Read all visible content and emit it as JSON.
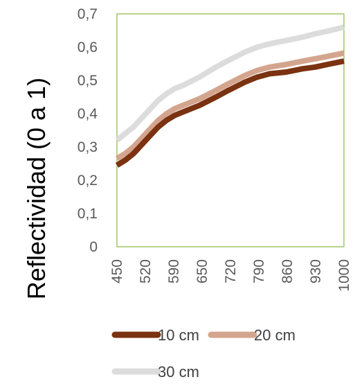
{
  "chart_data": {
    "type": "line",
    "title": "",
    "xlabel": "",
    "ylabel": "Reflectividad (0 a 1)",
    "x": [
      450,
      470,
      490,
      520,
      550,
      570,
      590,
      610,
      650,
      690,
      720,
      760,
      790,
      820,
      860,
      900,
      930,
      960,
      1000
    ],
    "x_tick_labels": [
      "450",
      "520",
      "590",
      "650",
      "720",
      "790",
      "860",
      "930",
      "1000"
    ],
    "y_ticks": [
      "0",
      "0,1",
      "0,2",
      "0,3",
      "0,4",
      "0,5",
      "0,6",
      "0,7"
    ],
    "ylim": [
      0,
      0.7
    ],
    "grid": false,
    "legend_position": "bottom",
    "series": [
      {
        "name": "10 cm",
        "color": "#7A3210",
        "values": [
          0.245,
          0.26,
          0.28,
          0.32,
          0.36,
          0.38,
          0.395,
          0.405,
          0.425,
          0.45,
          0.47,
          0.495,
          0.51,
          0.52,
          0.525,
          0.535,
          0.54,
          0.548,
          0.558
        ]
      },
      {
        "name": "20 cm",
        "color": "#D4A58E",
        "values": [
          0.265,
          0.28,
          0.3,
          0.34,
          0.38,
          0.4,
          0.415,
          0.425,
          0.445,
          0.47,
          0.49,
          0.515,
          0.53,
          0.54,
          0.548,
          0.558,
          0.565,
          0.572,
          0.582
        ]
      },
      {
        "name": "30 cm",
        "color": "#DCDCDC",
        "values": [
          0.32,
          0.34,
          0.36,
          0.4,
          0.44,
          0.46,
          0.475,
          0.485,
          0.51,
          0.54,
          0.56,
          0.585,
          0.6,
          0.61,
          0.62,
          0.63,
          0.64,
          0.648,
          0.66
        ]
      }
    ],
    "plot_border_color": "#8DB43C",
    "tick_color": "#595959"
  }
}
